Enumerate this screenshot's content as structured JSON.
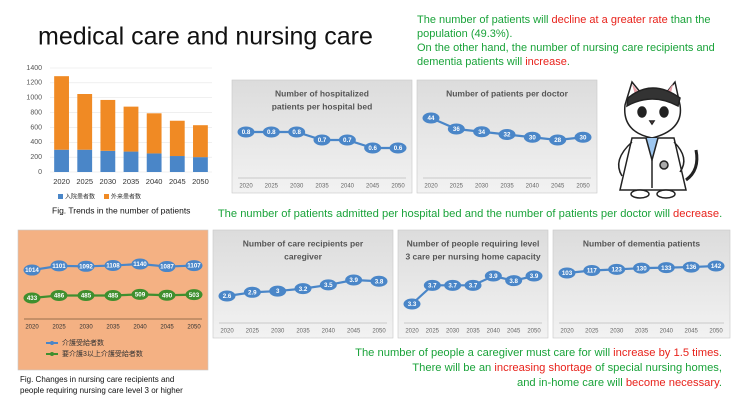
{
  "title": "medical care and nursing care",
  "notes": [
    {
      "lines": [
        [
          {
            "text": "The number of patients will ",
            "color": "#1aa33a"
          },
          {
            "text": "decline at a greater rate",
            "color": "#e8221b"
          },
          {
            "text": " than the",
            "color": "#1aa33a"
          }
        ],
        [
          {
            "text": "population (49.3%).",
            "color": "#1aa33a"
          }
        ],
        [
          {
            "text": "On the other hand, the number of nursing care recipients and",
            "color": "#1aa33a"
          }
        ],
        [
          {
            "text": "dementia patients will ",
            "color": "#1aa33a"
          },
          {
            "text": "increase",
            "color": "#e8221b"
          },
          {
            "text": ".",
            "color": "#1aa33a"
          }
        ]
      ]
    },
    {
      "lines": [
        [
          {
            "text": "The number of patients admitted per hospital bed and the number of patients per doctor will ",
            "color": "#1aa33a"
          },
          {
            "text": "decrease",
            "color": "#e8221b"
          },
          {
            "text": ".",
            "color": "#1aa33a"
          }
        ]
      ]
    },
    {
      "lines": [
        [
          {
            "text": "The number of people a caregiver must care for will ",
            "color": "#1aa33a"
          },
          {
            "text": "increase by 1.5 times",
            "color": "#e8221b"
          },
          {
            "text": ".",
            "color": "#1aa33a"
          }
        ],
        [
          {
            "text": "There will be an ",
            "color": "#1aa33a"
          },
          {
            "text": "increasing shortage",
            "color": "#e8221b"
          },
          {
            "text": " of special nursing homes,",
            "color": "#1aa33a"
          }
        ],
        [
          {
            "text": "and in-home care will ",
            "color": "#1aa33a"
          },
          {
            "text": "become necessary",
            "color": "#e8221b"
          },
          {
            "text": ".",
            "color": "#1aa33a"
          }
        ]
      ]
    }
  ],
  "chart_data": [
    {
      "type": "bar",
      "stacked": true,
      "caption": [
        "Fig. Trends in the number of patients"
      ],
      "categories": [
        "2020",
        "2025",
        "2030",
        "2035",
        "2040",
        "2045",
        "2050"
      ],
      "series": [
        {
          "name": "入院患者数",
          "color": "#4a86c8",
          "values": [
            300,
            300,
            285,
            275,
            250,
            215,
            200
          ]
        },
        {
          "name": "外来患者数",
          "color": "#f08a24",
          "values": [
            990,
            750,
            685,
            605,
            540,
            475,
            430
          ]
        }
      ],
      "ylim": [
        0,
        1400
      ],
      "yticks": [
        0,
        200,
        400,
        600,
        800,
        1000,
        1200,
        1400
      ],
      "grid": true
    },
    {
      "type": "line",
      "title": [
        "Number of hospitalized",
        "patients per hospital bed"
      ],
      "categories": [
        "2020",
        "2025",
        "2030",
        "2035",
        "2040",
        "2045",
        "2050"
      ],
      "values": [
        0.8,
        0.8,
        0.8,
        0.7,
        0.7,
        0.6,
        0.6
      ],
      "color": "#4a86c8"
    },
    {
      "type": "line",
      "title": [
        "Number of patients per doctor"
      ],
      "categories": [
        "2020",
        "2025",
        "2030",
        "2035",
        "2040",
        "2045",
        "2050"
      ],
      "values": [
        44,
        36,
        34,
        32,
        30,
        28,
        30
      ],
      "color": "#4a86c8"
    },
    {
      "type": "line",
      "title": [
        "Number of care recipients per",
        "caregiver"
      ],
      "categories": [
        "2020",
        "2025",
        "2030",
        "2035",
        "2040",
        "2045",
        "2050"
      ],
      "values": [
        2.6,
        2.9,
        3.0,
        3.2,
        3.5,
        3.9,
        3.8
      ],
      "color": "#4a86c8"
    },
    {
      "type": "line",
      "title": [
        "Number of people requiring level",
        "3 care per nursing home capacity"
      ],
      "categories": [
        "2020",
        "2025",
        "2030",
        "2035",
        "2040",
        "2045",
        "2050"
      ],
      "values": [
        3.3,
        3.7,
        3.7,
        3.7,
        3.9,
        3.8,
        3.9
      ],
      "color": "#4a86c8"
    },
    {
      "type": "line",
      "title": [
        "Number of dementia patients"
      ],
      "categories": [
        "2020",
        "2025",
        "2030",
        "2035",
        "2040",
        "2045",
        "2050"
      ],
      "values": [
        103,
        117,
        123,
        130,
        133,
        136,
        142
      ],
      "color": "#4a86c8"
    },
    {
      "type": "line",
      "caption": [
        "Fig. Changes in nursing care recipients and",
        "people requiring nursing care level 3 or higher"
      ],
      "categories": [
        "2020",
        "2025",
        "2030",
        "2035",
        "2040",
        "2045",
        "2050"
      ],
      "series": [
        {
          "name": "介護受給者数",
          "color": "#4a86c8",
          "values": [
            1014,
            1101,
            1092,
            1108,
            1140,
            1087,
            1107
          ]
        },
        {
          "name": "要介護3以上介護受給者数",
          "color": "#3f8f2e",
          "values": [
            433,
            486,
            485,
            485,
            509,
            490,
            503
          ]
        }
      ]
    }
  ]
}
